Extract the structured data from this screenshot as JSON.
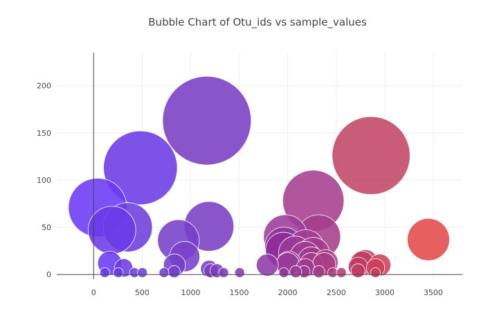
{
  "chart_data": {
    "type": "scatter",
    "title": "Bubble Chart of Otu_ids vs sample_values",
    "xlabel": "",
    "ylabel": "",
    "xlim": [
      -380,
      3800
    ],
    "ylim": [
      -5,
      235
    ],
    "x_ticks": [
      0,
      500,
      1000,
      1500,
      2000,
      2500,
      3000,
      3500
    ],
    "y_ticks": [
      0,
      50,
      100,
      150,
      200
    ],
    "grid": true,
    "legend": "none",
    "marker_sizing": "bubble size and color proportional to otu_id / sample_value",
    "points": [
      {
        "x": 1167,
        "y": 163,
        "color": "#7a3ec4"
      },
      {
        "x": 2859,
        "y": 126,
        "color": "#c24663"
      },
      {
        "x": 482,
        "y": 113,
        "color": "#6a3ae6"
      },
      {
        "x": 2264,
        "y": 78,
        "color": "#a63e8e"
      },
      {
        "x": 41,
        "y": 71,
        "color": "#6a3af5"
      },
      {
        "x": 1189,
        "y": 51,
        "color": "#7a3ec2"
      },
      {
        "x": 352,
        "y": 50,
        "color": "#6c3ddc"
      },
      {
        "x": 189,
        "y": 47,
        "color": "#6a3ae8"
      },
      {
        "x": 2318,
        "y": 40,
        "color": "#a53d8a"
      },
      {
        "x": 1977,
        "y": 40,
        "color": "#9b3c9b"
      },
      {
        "x": 3450,
        "y": 37,
        "color": "#e24a4a"
      },
      {
        "x": 874,
        "y": 36,
        "color": "#7640c9"
      },
      {
        "x": 1960,
        "y": 30,
        "color": "#90329a"
      },
      {
        "x": 2186,
        "y": 28,
        "color": "#a03e92"
      },
      {
        "x": 1955,
        "y": 26,
        "color": "#8f2e98"
      },
      {
        "x": 2077,
        "y": 23,
        "color": "#9a3a96"
      },
      {
        "x": 2264,
        "y": 22,
        "color": "#a53c8e"
      },
      {
        "x": 938,
        "y": 19,
        "color": "#7a40c8"
      },
      {
        "x": 2180,
        "y": 19,
        "color": "#9e3a91"
      },
      {
        "x": 2243,
        "y": 15,
        "color": "#a03a8f"
      },
      {
        "x": 2390,
        "y": 13,
        "color": "#ac3c84"
      },
      {
        "x": 2012,
        "y": 12,
        "color": "#9a3a96"
      },
      {
        "x": 2800,
        "y": 13,
        "color": "#c4405e"
      },
      {
        "x": 2768,
        "y": 12,
        "color": "#c23e62"
      },
      {
        "x": 166,
        "y": 12,
        "color": "#6a3af0"
      },
      {
        "x": 2244,
        "y": 11,
        "color": "#a33a8e"
      },
      {
        "x": 2376,
        "y": 11,
        "color": "#ab3c86"
      },
      {
        "x": 2000,
        "y": 11,
        "color": "#993a97"
      },
      {
        "x": 2950,
        "y": 10,
        "color": "#cc4258"
      },
      {
        "x": 833,
        "y": 10,
        "color": "#7440ca"
      },
      {
        "x": 1790,
        "y": 10,
        "color": "#8e3aa6"
      },
      {
        "x": 2725,
        "y": 8,
        "color": "#c03e66"
      },
      {
        "x": 2905,
        "y": 7,
        "color": "#c8405c"
      },
      {
        "x": 2182,
        "y": 7,
        "color": "#9e3a91"
      },
      {
        "x": 309,
        "y": 7,
        "color": "#6b3ce2"
      },
      {
        "x": 1190,
        "y": 6,
        "color": "#7a3ec2"
      },
      {
        "x": 1208,
        "y": 4,
        "color": "#7c3ec0"
      },
      {
        "x": 2725,
        "y": 4,
        "color": "#c03e66"
      },
      {
        "x": 1270,
        "y": 4,
        "color": "#7e3ebe"
      },
      {
        "x": 2168,
        "y": 3,
        "color": "#9c3a92"
      },
      {
        "x": 2320,
        "y": 3,
        "color": "#a53c8a"
      },
      {
        "x": 830,
        "y": 3,
        "color": "#7440ca"
      },
      {
        "x": 2083,
        "y": 3,
        "color": "#9a3a96"
      },
      {
        "x": 115,
        "y": 2,
        "color": "#6a3af2"
      },
      {
        "x": 254,
        "y": 2,
        "color": "#6a3ae6"
      },
      {
        "x": 420,
        "y": 2,
        "color": "#6c3ddc"
      },
      {
        "x": 502,
        "y": 2,
        "color": "#6e3dd8"
      },
      {
        "x": 725,
        "y": 2,
        "color": "#7240ce"
      },
      {
        "x": 1340,
        "y": 2,
        "color": "#803ebc"
      },
      {
        "x": 1505,
        "y": 2,
        "color": "#863caf"
      },
      {
        "x": 1960,
        "y": 2,
        "color": "#93399c"
      },
      {
        "x": 2463,
        "y": 2,
        "color": "#b03c80"
      },
      {
        "x": 2553,
        "y": 2,
        "color": "#b63e76"
      },
      {
        "x": 2904,
        "y": 2,
        "color": "#c8405c"
      }
    ]
  }
}
